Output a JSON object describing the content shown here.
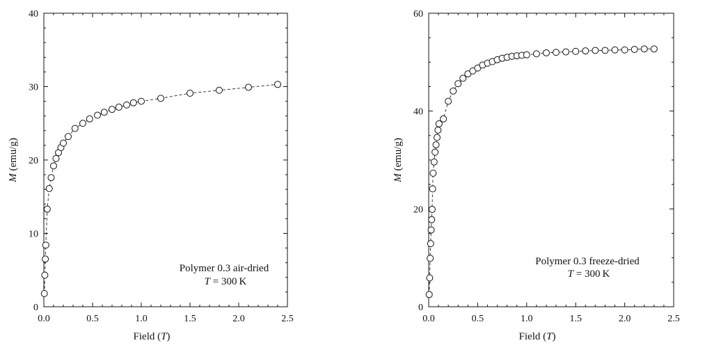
{
  "chart_data": [
    {
      "type": "scatter",
      "title": "",
      "xlabel": {
        "prefix": "Field (",
        "var": "T",
        "suffix": ")"
      },
      "ylabel": {
        "var": "M",
        "suffix": " (emu/g)"
      },
      "xlim": [
        0,
        2.5
      ],
      "ylim": [
        0,
        40
      ],
      "xticks": [
        "0.0",
        "0.5",
        "1.0",
        "1.5",
        "2.0",
        "2.5"
      ],
      "yticks": [
        "0",
        "10",
        "20",
        "30",
        "40"
      ],
      "grid": false,
      "marker": "open-circle",
      "line": "dashed",
      "annotation": {
        "line1": "Polymer 0.3 air-dried",
        "line2_var": "T",
        "line2_rest": " = 300 K"
      },
      "series": [
        {
          "x": [
            0.005,
            0.01,
            0.015,
            0.02,
            0.035,
            0.055,
            0.075,
            0.1,
            0.125,
            0.15,
            0.175,
            0.2,
            0.25,
            0.32,
            0.4,
            0.47,
            0.55,
            0.62,
            0.7,
            0.77,
            0.85,
            0.92,
            1.0,
            1.2,
            1.5,
            1.8,
            2.1,
            2.4
          ],
          "y": [
            1.8,
            4.3,
            6.5,
            8.4,
            13.3,
            16.1,
            17.6,
            19.2,
            20.2,
            21.0,
            21.7,
            22.3,
            23.2,
            24.3,
            25.0,
            25.6,
            26.1,
            26.5,
            26.9,
            27.2,
            27.5,
            27.8,
            28.0,
            28.4,
            29.1,
            29.5,
            29.9,
            30.3
          ]
        }
      ]
    },
    {
      "type": "scatter",
      "title": "",
      "xlabel": {
        "prefix": "Field (",
        "var": "T",
        "suffix": ")"
      },
      "ylabel": {
        "var": "M",
        "suffix": " (emu/g)"
      },
      "xlim": [
        0,
        2.5
      ],
      "ylim": [
        0,
        60
      ],
      "xticks": [
        "0.0",
        "0.5",
        "1.0",
        "1.5",
        "2.0",
        "2.5"
      ],
      "yticks": [
        "0",
        "20",
        "40",
        "60"
      ],
      "grid": false,
      "marker": "open-circle",
      "line": "dashed",
      "annotation": {
        "line1": "Polymer 0.3 freeze-dried",
        "line2_var": "T",
        "line2_rest": " = 300 K"
      },
      "series": [
        {
          "x": [
            0.005,
            0.01,
            0.015,
            0.02,
            0.025,
            0.03,
            0.035,
            0.04,
            0.045,
            0.055,
            0.065,
            0.075,
            0.085,
            0.095,
            0.105,
            0.15,
            0.2,
            0.25,
            0.3,
            0.35,
            0.4,
            0.45,
            0.5,
            0.55,
            0.6,
            0.65,
            0.7,
            0.75,
            0.8,
            0.85,
            0.9,
            0.95,
            1.0,
            1.1,
            1.2,
            1.3,
            1.4,
            1.5,
            1.6,
            1.7,
            1.8,
            1.9,
            2.0,
            2.1,
            2.2,
            2.3
          ],
          "y": [
            2.5,
            5.9,
            9.9,
            12.9,
            15.7,
            17.8,
            19.9,
            24.1,
            27.3,
            29.6,
            31.6,
            33.1,
            34.6,
            36.1,
            37.4,
            38.4,
            42.0,
            44.1,
            45.6,
            46.7,
            47.6,
            48.2,
            48.8,
            49.4,
            49.8,
            50.1,
            50.5,
            50.8,
            51.0,
            51.2,
            51.3,
            51.4,
            51.5,
            51.7,
            51.9,
            52.0,
            52.1,
            52.2,
            52.3,
            52.4,
            52.4,
            52.5,
            52.5,
            52.6,
            52.7,
            52.7
          ]
        }
      ]
    }
  ]
}
